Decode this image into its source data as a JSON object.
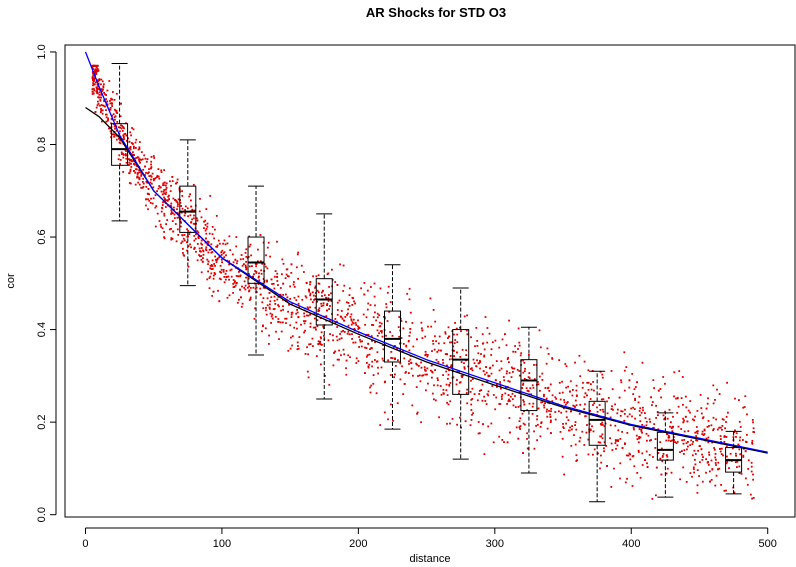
{
  "chart_data": {
    "type": "scatter",
    "title": "AR Shocks for STD O3",
    "xlabel": "distance",
    "ylabel": "cor",
    "xlim": [
      -15,
      520
    ],
    "ylim": [
      -0.005,
      1.015
    ],
    "xticks": [
      0,
      100,
      200,
      300,
      400,
      500
    ],
    "yticks": [
      0.0,
      0.2,
      0.4,
      0.6,
      0.8,
      1.0
    ],
    "ytick_labels": [
      "0.0",
      "0.2",
      "0.4",
      "0.6",
      "0.8",
      "1.0"
    ],
    "grid": false,
    "legend": "none",
    "colors": {
      "points": "#dd0000",
      "fit_black": "#000000",
      "fit_blue": "#0000ff",
      "boxes": "#000000"
    },
    "scatter": {
      "n_points": 2500,
      "x_range": [
        5,
        490
      ]
    },
    "boxplots": [
      {
        "x": 25,
        "whisker_low": 0.635,
        "q1": 0.755,
        "median": 0.79,
        "q3": 0.845,
        "whisker_high": 0.975
      },
      {
        "x": 75,
        "whisker_low": 0.495,
        "q1": 0.61,
        "median": 0.655,
        "q3": 0.71,
        "whisker_high": 0.81
      },
      {
        "x": 125,
        "whisker_low": 0.345,
        "q1": 0.5,
        "median": 0.545,
        "q3": 0.6,
        "whisker_high": 0.71
      },
      {
        "x": 175,
        "whisker_low": 0.25,
        "q1": 0.41,
        "median": 0.465,
        "q3": 0.51,
        "whisker_high": 0.65
      },
      {
        "x": 225,
        "whisker_low": 0.185,
        "q1": 0.33,
        "median": 0.38,
        "q3": 0.44,
        "whisker_high": 0.54
      },
      {
        "x": 275,
        "whisker_low": 0.12,
        "q1": 0.26,
        "median": 0.335,
        "q3": 0.4,
        "whisker_high": 0.49
      },
      {
        "x": 325,
        "whisker_low": 0.09,
        "q1": 0.225,
        "median": 0.29,
        "q3": 0.335,
        "whisker_high": 0.405
      },
      {
        "x": 375,
        "whisker_low": 0.028,
        "q1": 0.15,
        "median": 0.205,
        "q3": 0.245,
        "whisker_high": 0.31
      },
      {
        "x": 425,
        "whisker_low": 0.038,
        "q1": 0.118,
        "median": 0.14,
        "q3": 0.178,
        "whisker_high": 0.22
      },
      {
        "x": 475,
        "whisker_low": 0.045,
        "q1": 0.092,
        "median": 0.118,
        "q3": 0.145,
        "whisker_high": 0.18
      }
    ],
    "fits": [
      {
        "color": "#0000ff",
        "x_start": 0,
        "x_end": 500,
        "points": [
          [
            0,
            1.0
          ],
          [
            10,
            0.925
          ],
          [
            25,
            0.82
          ],
          [
            50,
            0.7
          ],
          [
            100,
            0.555
          ],
          [
            150,
            0.46
          ],
          [
            200,
            0.395
          ],
          [
            250,
            0.335
          ],
          [
            300,
            0.285
          ],
          [
            350,
            0.235
          ],
          [
            400,
            0.195
          ],
          [
            450,
            0.165
          ],
          [
            500,
            0.135
          ]
        ]
      },
      {
        "color": "#000000",
        "x_start": 0,
        "x_end": 500,
        "points": [
          [
            0,
            0.88
          ],
          [
            10,
            0.86
          ],
          [
            25,
            0.815
          ],
          [
            50,
            0.7
          ],
          [
            100,
            0.555
          ],
          [
            150,
            0.455
          ],
          [
            200,
            0.39
          ],
          [
            250,
            0.33
          ],
          [
            300,
            0.28
          ],
          [
            350,
            0.232
          ],
          [
            400,
            0.193
          ],
          [
            450,
            0.163
          ],
          [
            500,
            0.133
          ]
        ]
      }
    ]
  }
}
